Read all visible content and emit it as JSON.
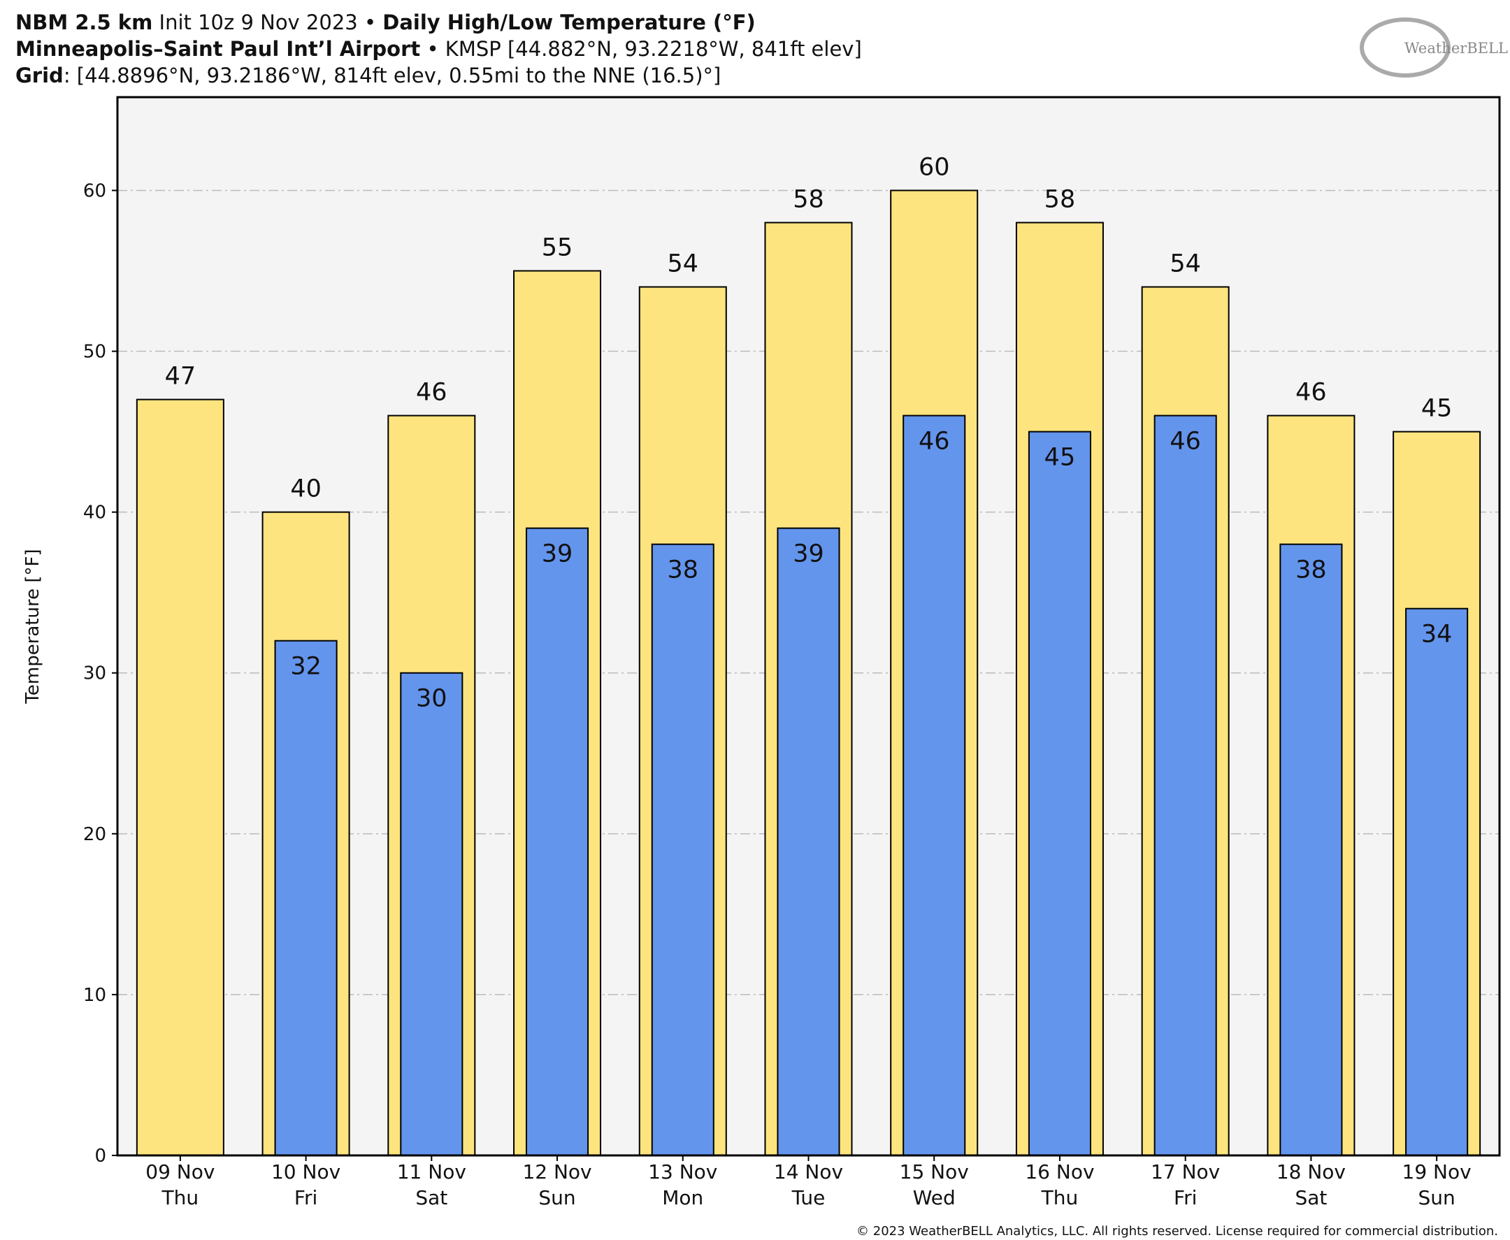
{
  "chart_data": {
    "type": "bar",
    "title_lines": [
      [
        {
          "text": "NBM 2.5 km",
          "bold": true
        },
        {
          "text": " Init 10z 9 Nov 2023 • ",
          "bold": false
        },
        {
          "text": "Daily High/Low Temperature (°F)",
          "bold": true
        }
      ],
      [
        {
          "text": "Minneapolis–Saint Paul Int’l Airport",
          "bold": true
        },
        {
          "text": " • KMSP [44.882°N, 93.2218°W, 841ft elev]",
          "bold": false
        }
      ],
      [
        {
          "text": "Grid",
          "bold": true
        },
        {
          "text": ": [44.8896°N, 93.2186°W, 814ft elev, 0.55mi to the NNE (16.5)°]",
          "bold": false
        }
      ]
    ],
    "logo": "WeatherBELL",
    "y_label": "Temperature [°F]",
    "footer": "© 2023 WeatherBELL Analytics, LLC. All rights reserved. License required for commercial distribution.",
    "categories": [
      "09 Nov",
      "10 Nov",
      "11 Nov",
      "12 Nov",
      "13 Nov",
      "14 Nov",
      "15 Nov",
      "16 Nov",
      "17 Nov",
      "18 Nov",
      "19 Nov"
    ],
    "weekdays": [
      "Thu",
      "Fri",
      "Sat",
      "Sun",
      "Mon",
      "Tue",
      "Wed",
      "Thu",
      "Fri",
      "Sat",
      "Sun"
    ],
    "series": [
      {
        "color": "#fde47f",
        "values": [
          47,
          40,
          46,
          55,
          54,
          58,
          60,
          58,
          54,
          46,
          45
        ]
      },
      {
        "color": "#6495ed",
        "values": [
          null,
          32,
          30,
          39,
          38,
          39,
          46,
          45,
          46,
          38,
          34
        ]
      }
    ],
    "ylim": [
      0,
      65.8
    ],
    "yticks": [
      0,
      10,
      20,
      30,
      40,
      50,
      60
    ],
    "grid": true
  }
}
